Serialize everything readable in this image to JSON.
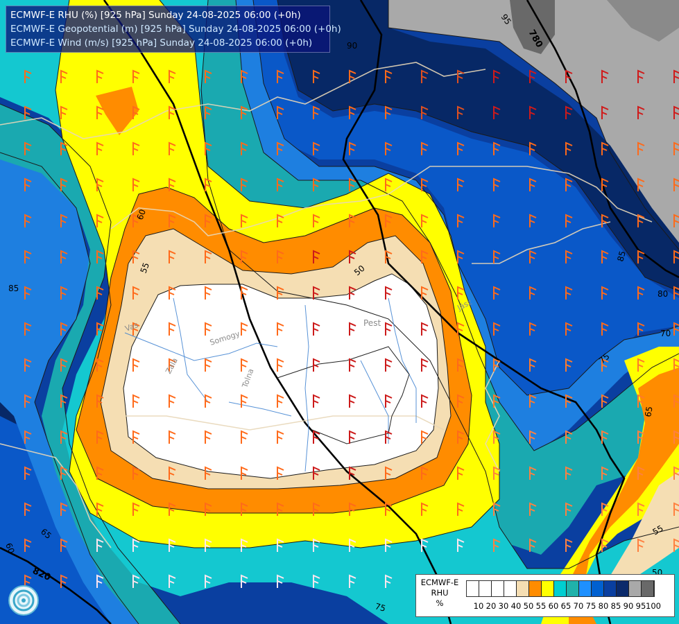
{
  "header": {
    "line1": "ECMWF-E RHU (%) [925 hPa] Sunday 24-08-2025 06:00 (+0h)",
    "line2": "ECMWF-E Geopotential (m) [925 hPa] Sunday 24-08-2025 06:00 (+0h)",
    "line3": "ECMWF-E Wind (m/s) [925 hPa] Sunday 24-08-2025 06:00 (+0h)"
  },
  "map_labels": {
    "region_pest": "Pest",
    "river_zala": "Zala",
    "river_vas": "Vas",
    "river_somogy": "Somogy",
    "river_tolna": "Tolna",
    "river_jasz": "Jász",
    "contour_780": "780",
    "contour_820": "820",
    "contour_50": "50",
    "contour_55": "55",
    "contour_60": "60",
    "contour_65": "65",
    "contour_70": "70",
    "contour_75": "75",
    "contour_80": "80",
    "contour_85": "85",
    "contour_95": "95",
    "contour_90": "90"
  },
  "legend": {
    "label_line1": "ECMWF-E",
    "label_line2": "RHU",
    "label_line3": "%",
    "ticks": [
      "10",
      "20",
      "30",
      "40",
      "50",
      "55",
      "60",
      "65",
      "70",
      "75",
      "80",
      "85",
      "90",
      "95",
      "100"
    ],
    "colors": [
      "#ffffff",
      "#ffffff",
      "#ffffff",
      "#ffffff",
      "#f5deb3",
      "#ff8c00",
      "#ffff00",
      "#00ced1",
      "#20b2aa",
      "#1e90ff",
      "#0060d0",
      "#0a3fa0",
      "#0b2a6b",
      "#a9a9a9",
      "#696969"
    ]
  },
  "colors": {
    "dry_core": "#ffffff",
    "wheat": "#f5deb3",
    "orange": "#ff8c00",
    "yellow": "#ffff00",
    "turquoise": "#14c8d0",
    "teal": "#1aa9b0",
    "blue": "#1e7fe0",
    "mid_blue": "#0a58c8",
    "navy": "#0b3a8c",
    "dark_navy": "#072866",
    "gray": "#a9a9a9",
    "dark_gray": "#696969"
  }
}
